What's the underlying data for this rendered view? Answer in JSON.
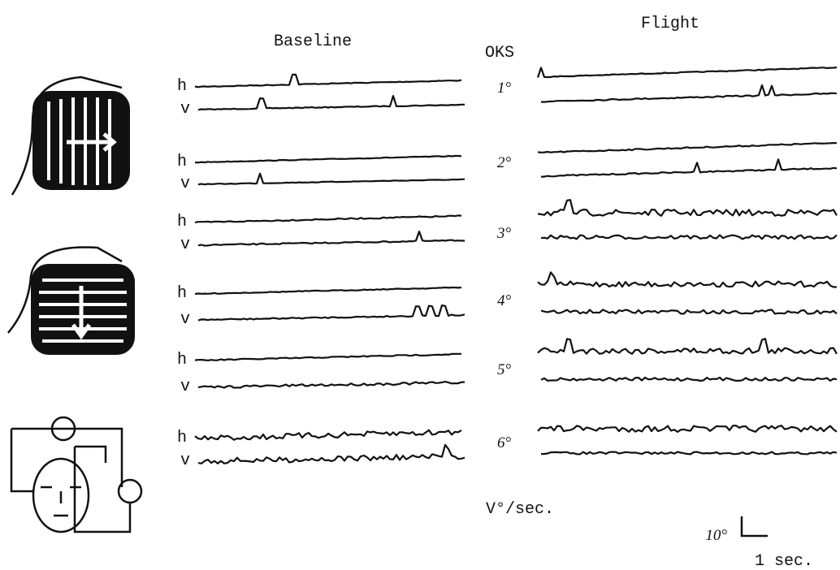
{
  "baseline_title": "Baseline",
  "flight_title": "Flight",
  "oks_header": "OKS",
  "rows": [
    {
      "h": "h",
      "v": "v",
      "oks": "1°"
    },
    {
      "h": "h",
      "v": "v",
      "oks": "2°"
    },
    {
      "h": "h",
      "v": "v",
      "oks": "3°"
    },
    {
      "h": "h",
      "v": "v",
      "oks": "4°"
    },
    {
      "h": "h",
      "v": "v",
      "oks": "5°"
    },
    {
      "h": "h",
      "v": "v",
      "oks": "6°"
    }
  ],
  "unit_label": "V°/sec.",
  "scale_bar": {
    "vertical": "10°",
    "horizontal": "1 sec."
  }
}
